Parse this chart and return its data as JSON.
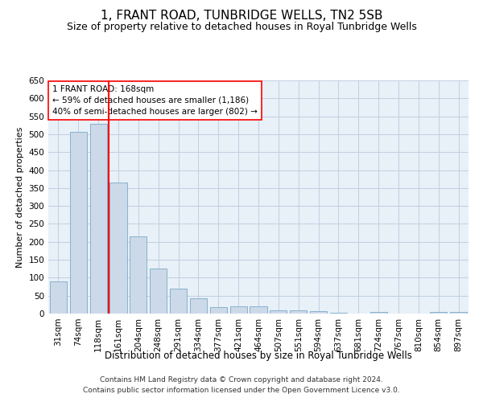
{
  "title": "1, FRANT ROAD, TUNBRIDGE WELLS, TN2 5SB",
  "subtitle": "Size of property relative to detached houses in Royal Tunbridge Wells",
  "xlabel": "Distribution of detached houses by size in Royal Tunbridge Wells",
  "ylabel": "Number of detached properties",
  "footnote1": "Contains HM Land Registry data © Crown copyright and database right 2024.",
  "footnote2": "Contains public sector information licensed under the Open Government Licence v3.0.",
  "annotation_line1": "1 FRANT ROAD: 168sqm",
  "annotation_line2": "← 59% of detached houses are smaller (1,186)",
  "annotation_line3": "40% of semi-detached houses are larger (802) →",
  "bar_color": "#ccd9e8",
  "bar_edge_color": "#7aaac8",
  "categories": [
    "31sqm",
    "74sqm",
    "118sqm",
    "161sqm",
    "204sqm",
    "248sqm",
    "291sqm",
    "334sqm",
    "377sqm",
    "421sqm",
    "464sqm",
    "507sqm",
    "551sqm",
    "594sqm",
    "637sqm",
    "681sqm",
    "724sqm",
    "767sqm",
    "810sqm",
    "854sqm",
    "897sqm"
  ],
  "values": [
    90,
    507,
    530,
    365,
    215,
    125,
    70,
    42,
    17,
    20,
    20,
    10,
    10,
    7,
    2,
    0,
    5,
    0,
    0,
    5,
    5
  ],
  "red_line_index": 3,
  "ylim": [
    0,
    650
  ],
  "yticks": [
    0,
    50,
    100,
    150,
    200,
    250,
    300,
    350,
    400,
    450,
    500,
    550,
    600,
    650
  ],
  "background_color": "#ffffff",
  "axes_bg_color": "#e8f0f8",
  "grid_color": "#c0cfe0",
  "title_fontsize": 11,
  "subtitle_fontsize": 9,
  "xlabel_fontsize": 8.5,
  "ylabel_fontsize": 8,
  "tick_fontsize": 7.5,
  "annotation_fontsize": 7.5,
  "footnote_fontsize": 6.5
}
